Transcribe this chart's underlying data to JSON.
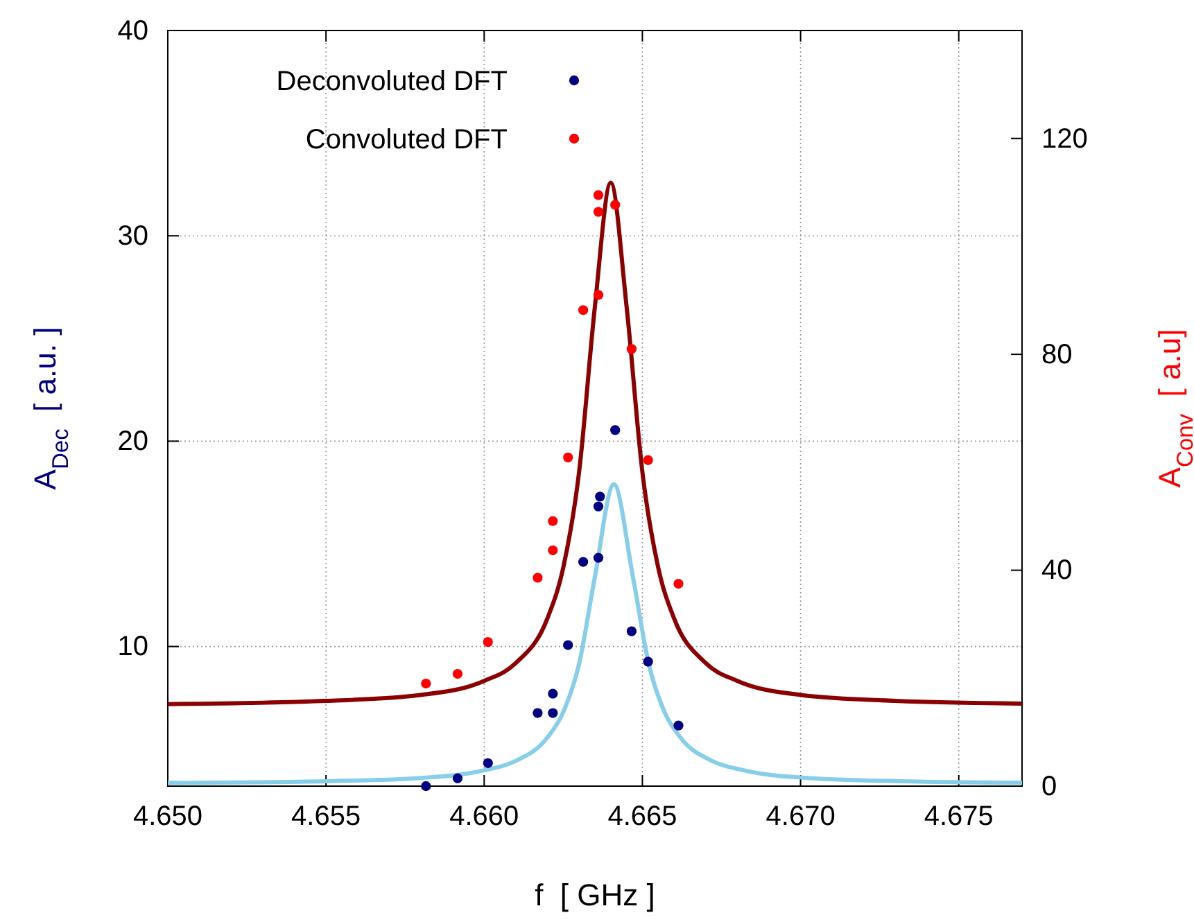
{
  "chart_data": {
    "type": "scatter",
    "xlabel": "f  [ GHz ]",
    "ylabel": "A$_{Dec}$  [ a.u. ]",
    "y2label": "A$_{Conv}$  [ a.u]",
    "xlim": [
      4.65,
      4.677
    ],
    "xticks": [
      {
        "value": 4.65,
        "label": "4.650"
      },
      {
        "value": 4.655,
        "label": "4.655"
      },
      {
        "value": 4.66,
        "label": "4.660"
      },
      {
        "value": 4.665,
        "label": "4.665"
      },
      {
        "value": 4.67,
        "label": "4.670"
      },
      {
        "value": 4.675,
        "label": "4.675"
      }
    ],
    "ylim": [
      3.2,
      40
    ],
    "yticks": [
      10,
      20,
      30,
      40
    ],
    "y2lim": [
      0,
      140
    ],
    "y2ticks": [
      0,
      40,
      80,
      120
    ],
    "grid": true,
    "legend": "top left",
    "marker": "circle",
    "series": [
      {
        "type": "line",
        "marker": "none",
        "color": "#87ceeb",
        "x": [
          4.65,
          4.655,
          4.658,
          4.66,
          4.661,
          4.662,
          4.6625,
          4.663,
          4.6635,
          4.6641,
          4.6647,
          4.6652,
          4.6657,
          4.6662,
          4.6672,
          4.6682,
          4.6702,
          4.6732,
          4.677
        ],
        "values": [
          3.36,
          3.44,
          3.6,
          3.97,
          4.43,
          5.57,
          6.81,
          9.16,
          13.4,
          17.9,
          13.4,
          9.16,
          6.81,
          5.57,
          4.43,
          3.97,
          3.6,
          3.44,
          3.37
        ]
      },
      {
        "type": "line",
        "marker": "none",
        "color": "#8b0000",
        "axis": "y2",
        "x": [
          4.65,
          4.655,
          4.658,
          4.66,
          4.661,
          4.662,
          4.6625,
          4.663,
          4.6635,
          4.664,
          4.6645,
          4.665,
          4.6655,
          4.666,
          4.667,
          4.668,
          4.67,
          4.673,
          4.677
        ],
        "values": [
          15.2,
          15.8,
          16.9,
          19.5,
          22.8,
          31.1,
          40.5,
          58.2,
          88.9,
          111.8,
          88.9,
          58.2,
          40.5,
          31.1,
          22.8,
          19.5,
          16.9,
          15.8,
          15.3
        ]
      },
      {
        "name": "Deconvoluted DFT",
        "color": "#000080",
        "x": [
          4.65816,
          4.65916,
          4.66012,
          4.66169,
          4.66217,
          4.66217,
          4.66265,
          4.66313,
          4.66361,
          4.66361,
          4.66366,
          4.66414,
          4.66466,
          4.66518,
          4.66614
        ],
        "values": [
          3.2,
          3.58,
          4.32,
          6.76,
          6.76,
          7.7,
          10.07,
          14.12,
          14.32,
          16.82,
          17.3,
          20.54,
          10.74,
          9.26,
          6.15
        ]
      },
      {
        "name": "Convoluted DFT",
        "color": "#ff0000",
        "axis": "y2",
        "x": [
          4.65816,
          4.65916,
          4.66012,
          4.66169,
          4.66217,
          4.66217,
          4.66265,
          4.66313,
          4.66361,
          4.66361,
          4.66361,
          4.66414,
          4.66466,
          4.66518,
          4.66614
        ],
        "values": [
          19.0,
          20.8,
          26.7,
          38.6,
          43.7,
          49.1,
          60.9,
          88.2,
          91.0,
          106.4,
          109.5,
          107.7,
          81.0,
          60.4,
          37.5
        ]
      }
    ]
  }
}
